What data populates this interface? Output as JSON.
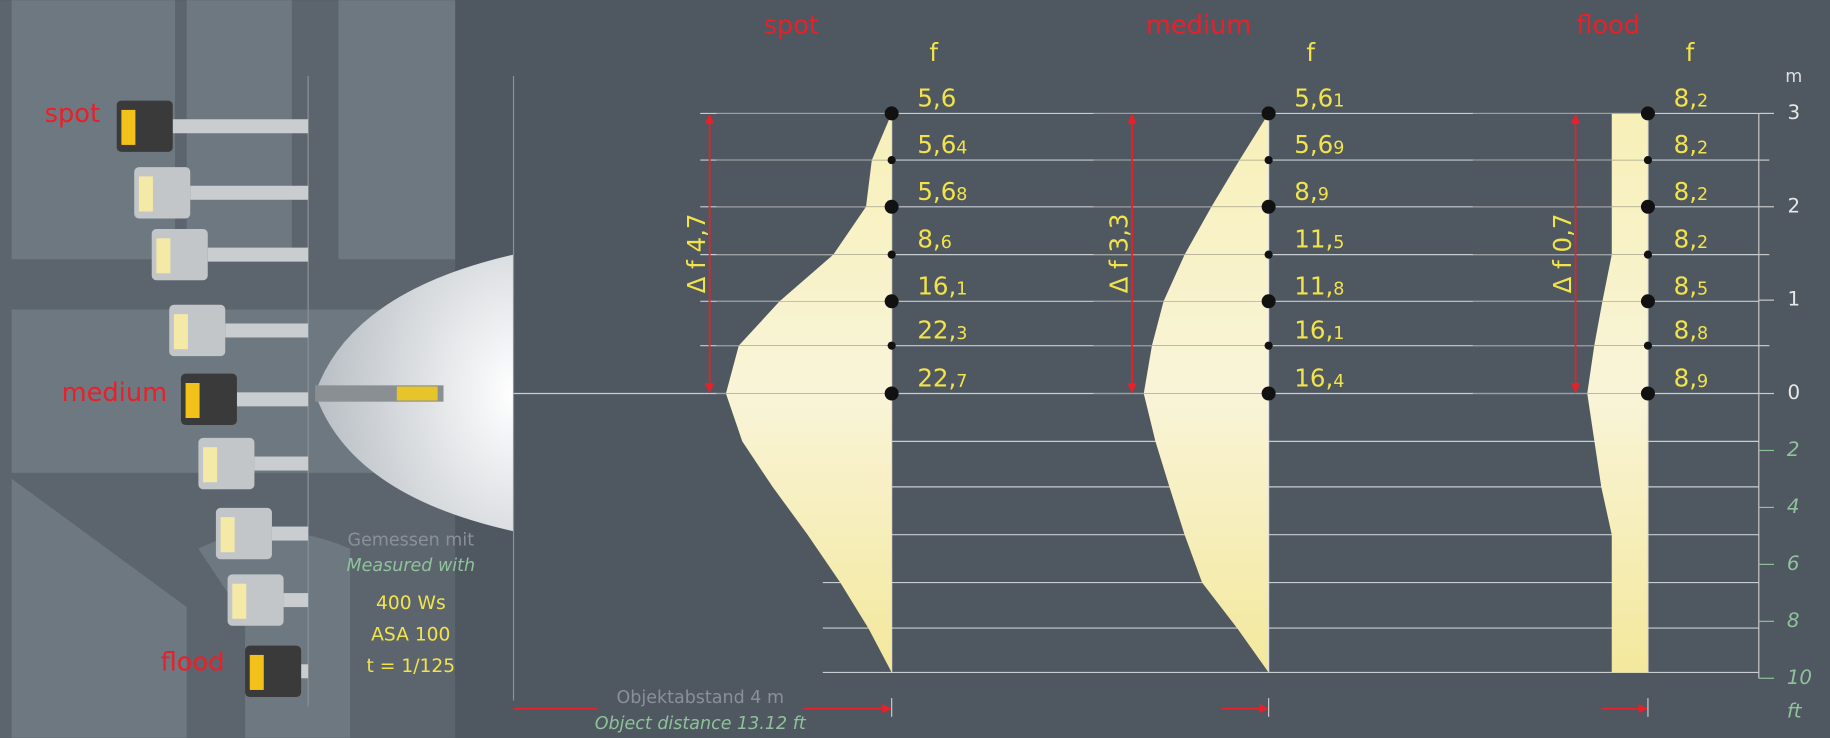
{
  "left_labels": [
    "spot",
    "medium",
    "flood"
  ],
  "columns": [
    {
      "title": "spot",
      "f_header": "f",
      "delta": "Δ f 4,7",
      "values": [
        {
          "main": "5,6"
        },
        {
          "main": "5,6",
          "sub": "4"
        },
        {
          "main": "5,6",
          "sub": "8"
        },
        {
          "main": "8,",
          "sub": "6"
        },
        {
          "main": "16,",
          "sub": "1"
        },
        {
          "main": "22,",
          "sub": "3"
        },
        {
          "main": "22,",
          "sub": "7"
        }
      ]
    },
    {
      "title": "medium",
      "f_header": "f",
      "delta": "Δ f 3,3",
      "values": [
        {
          "main": "5,6",
          "sub": "1"
        },
        {
          "main": "5,6",
          "sub": "9"
        },
        {
          "main": "8,",
          "sub": "9"
        },
        {
          "main": "11,",
          "sub": "5"
        },
        {
          "main": "11,",
          "sub": "8"
        },
        {
          "main": "16,",
          "sub": "1"
        },
        {
          "main": "16,",
          "sub": "4"
        }
      ]
    },
    {
      "title": "flood",
      "f_header": "f",
      "delta": "Δ f 0,7",
      "values": [
        {
          "main": "8,",
          "sub": "2"
        },
        {
          "main": "8,",
          "sub": "2"
        },
        {
          "main": "8,",
          "sub": "2"
        },
        {
          "main": "8,",
          "sub": "2"
        },
        {
          "main": "8,",
          "sub": "5"
        },
        {
          "main": "8,",
          "sub": "8"
        },
        {
          "main": "8,",
          "sub": "9"
        }
      ]
    }
  ],
  "scale": {
    "m_unit": "m",
    "m_ticks": [
      0,
      1,
      2,
      3
    ],
    "ft_unit": "ft",
    "ft_ticks": [
      2,
      4,
      6,
      8,
      10
    ]
  },
  "measured": {
    "de": "Gemessen mit",
    "en": "Measured with",
    "power": "400 Ws",
    "film": "ASA 100",
    "time": "t = 1/125"
  },
  "distance": {
    "de": "Objektabstand 4 m",
    "en": "Object distance 13.12 ft"
  }
}
